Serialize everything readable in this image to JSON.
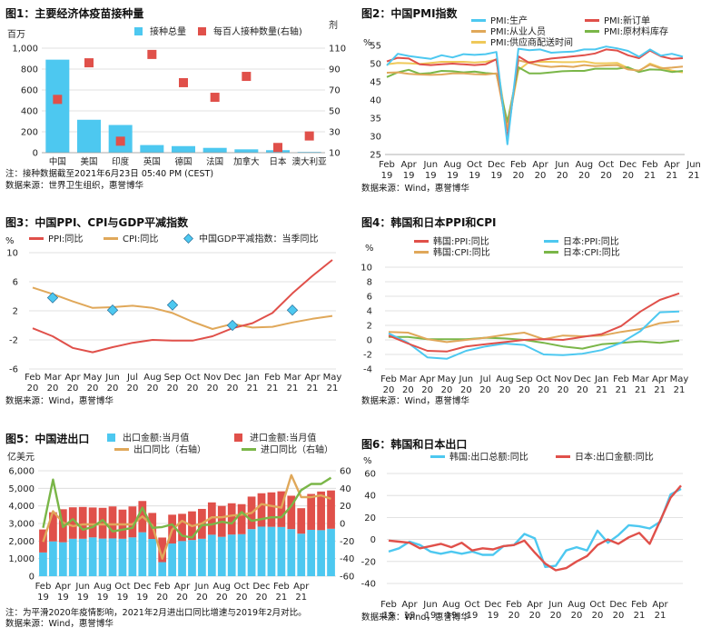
{
  "chart_data": [
    {
      "type": "bar",
      "title": "图1：主要经济体疫苗接种量",
      "yunit_left": "百万",
      "yunit_right": "剂",
      "categories": [
        "中国",
        "美国",
        "印度",
        "英国",
        "德国",
        "法国",
        "加拿大",
        "日本",
        "澳大利亚"
      ],
      "series": [
        {
          "name": "接种总量",
          "type": "bar",
          "axis": "left",
          "color": "#4dc8f0",
          "values": [
            890,
            315,
            265,
            73,
            63,
            46,
            32,
            24,
            7
          ]
        },
        {
          "name": "每百人接种数量(右轴)",
          "type": "scatter",
          "axis": "right",
          "color": "#e0504a",
          "values": [
            61,
            96,
            21,
            104,
            77,
            63,
            83,
            15,
            26
          ]
        }
      ],
      "yleft": {
        "min": 0,
        "max": 1000,
        "step": 200,
        "ticks": [
          "0",
          "200",
          "400",
          "600",
          "800",
          "1,000"
        ]
      },
      "yright": {
        "min": 10,
        "max": 110,
        "step": 20,
        "ticks": [
          "10",
          "30",
          "50",
          "70",
          "90",
          "110"
        ]
      },
      "notes": [
        "注：接种数据截至2021年6月23日 05:40 PM (CEST)",
        "数据来源：世界卫生组织，惠誉博华"
      ]
    },
    {
      "type": "line",
      "title": "图2：中国PMI指数",
      "yunit_left": "%",
      "xticks": [
        "Feb 19",
        "Apr 19",
        "Jun 19",
        "Aug 19",
        "Oct 19",
        "Dec 19",
        "Feb 20",
        "Apr 20",
        "Jun 20",
        "Aug 20",
        "Oct 20",
        "Dec 20",
        "Feb 21",
        "Apr 21",
        "Jun 21"
      ],
      "yleft": {
        "min": 25,
        "max": 55,
        "step": 5,
        "ticks": [
          "25",
          "30",
          "35",
          "40",
          "45",
          "50",
          "55"
        ]
      },
      "series": [
        {
          "name": "PMI:生产",
          "color": "#4dc8f0",
          "values": [
            49.5,
            52.7,
            52.1,
            51.7,
            51.3,
            52.3,
            51.7,
            52.6,
            52.4,
            52.6,
            53.2,
            27.8,
            54.1,
            53.7,
            53.9,
            53.0,
            53.2,
            53.3,
            53.9,
            53.9,
            54.7,
            54.2,
            53.5,
            51.9,
            53.9,
            52.2,
            52.7,
            51.9
          ]
        },
        {
          "name": "PMI:新订单",
          "color": "#e0504a",
          "values": [
            50.6,
            51.6,
            51.4,
            49.8,
            49.6,
            49.8,
            50.0,
            49.8,
            49.6,
            49.8,
            51.2,
            29.3,
            52.0,
            50.2,
            50.9,
            51.4,
            51.7,
            52.0,
            52.3,
            52.8,
            53.9,
            53.6,
            52.3,
            51.5,
            53.6,
            52.0,
            51.3,
            51.5
          ]
        },
        {
          "name": "PMI:从业人员",
          "color": "#e0a85a",
          "values": [
            47.5,
            47.6,
            47.2,
            47.0,
            46.9,
            47.0,
            47.3,
            47.3,
            47.1,
            47.0,
            47.3,
            31.8,
            50.9,
            50.2,
            49.4,
            49.1,
            49.3,
            49.1,
            49.6,
            49.3,
            49.5,
            49.6,
            48.4,
            48.1,
            49.7,
            48.7,
            48.9,
            49.2
          ]
        },
        {
          "name": "PMI:原材料库存",
          "color": "#7ab648",
          "values": [
            46.3,
            47.6,
            48.3,
            47.2,
            47.4,
            48.0,
            47.9,
            47.6,
            47.8,
            47.4,
            47.2,
            33.9,
            49.0,
            47.3,
            47.3,
            47.6,
            47.9,
            48.0,
            48.0,
            48.6,
            48.6,
            48.6,
            49.0,
            47.7,
            48.4,
            48.3,
            47.7,
            48.0
          ]
        },
        {
          "name": "PMI:供应商配送时间",
          "color": "#efc95a",
          "values": [
            49.8,
            50.2,
            50.1,
            49.9,
            50.2,
            50.5,
            50.5,
            50.5,
            50.3,
            50.5,
            51.1,
            32.1,
            48.2,
            50.5,
            50.5,
            50.5,
            50.4,
            50.4,
            50.6,
            50.1,
            50.1,
            50.2,
            48.8,
            47.9,
            50.0,
            48.9,
            48.1,
            47.6
          ]
        }
      ],
      "notes": [
        "数据来源：Wind，惠誉博华"
      ]
    },
    {
      "type": "line",
      "title": "图3：中国PPI、CPI与GDP平减指数",
      "yunit_left": "%",
      "xticks": [
        "Feb 20",
        "Mar 20",
        "Apr 20",
        "May 20",
        "Jun 20",
        "Jul 20",
        "Aug 20",
        "Sep 20",
        "Oct 20",
        "Nov 20",
        "Dec 20",
        "Jan 21",
        "Feb 21",
        "Mar 21",
        "Apr 21",
        "May 21"
      ],
      "yleft": {
        "min": -6,
        "max": 10,
        "step": 4,
        "ticks": [
          "-6",
          "-2",
          "2",
          "6",
          "10"
        ]
      },
      "series": [
        {
          "name": "PPI:同比",
          "color": "#e0504a",
          "values": [
            -0.4,
            -1.5,
            -3.1,
            -3.7,
            -3.0,
            -2.4,
            -2.0,
            -2.1,
            -2.1,
            -1.5,
            -0.4,
            0.3,
            1.7,
            4.4,
            6.8,
            9.0
          ]
        },
        {
          "name": "CPI:同比",
          "color": "#e0a85a",
          "values": [
            5.2,
            4.3,
            3.3,
            2.4,
            2.5,
            2.7,
            2.4,
            1.7,
            0.5,
            -0.5,
            0.2,
            -0.3,
            -0.2,
            0.4,
            0.9,
            1.3
          ]
        },
        {
          "name": "中国GDP平减指数：当季同比",
          "color": "#4dc8f0",
          "marker": "diamond",
          "points": [
            {
              "x": "Mar 20",
              "y": 3.8
            },
            {
              "x": "Jun 20",
              "y": 2.1
            },
            {
              "x": "Sep 20",
              "y": 2.8
            },
            {
              "x": "Dec 20",
              "y": 0.0
            },
            {
              "x": "Mar 21",
              "y": 2.1
            }
          ]
        }
      ],
      "notes": [
        "数据来源：Wind，惠誉博华"
      ]
    },
    {
      "type": "line",
      "title": "图4：韩国和日本PPI和CPI",
      "yunit_left": "%",
      "xticks": [
        "Feb 20",
        "Mar 20",
        "Apr 20",
        "May 20",
        "Jun 20",
        "Jul 20",
        "Aug 20",
        "Sep 20",
        "Oct 20",
        "Nov 20",
        "Dec 20",
        "Jan 21",
        "Feb 21",
        "Mar 21",
        "Apr 21",
        "May 21"
      ],
      "yleft": {
        "min": -4,
        "max": 10,
        "step": 2,
        "ticks": [
          "-4",
          "-2",
          "0",
          "2",
          "4",
          "6",
          "8",
          "10"
        ]
      },
      "series": [
        {
          "name": "韩国:PPI:同比",
          "color": "#e0504a",
          "values": [
            0.6,
            -0.5,
            -1.5,
            -1.6,
            -0.9,
            -0.6,
            -0.3,
            0.0,
            0.1,
            0.0,
            0.4,
            0.8,
            1.9,
            3.9,
            5.5,
            6.4
          ]
        },
        {
          "name": "日本:PPI:同比",
          "color": "#4dc8f0",
          "values": [
            0.9,
            -0.4,
            -2.4,
            -2.6,
            -1.5,
            -0.9,
            -0.5,
            -0.7,
            -2.0,
            -2.1,
            -1.9,
            -1.4,
            -0.4,
            1.2,
            3.8,
            3.9
          ]
        },
        {
          "name": "韩国:CPI:同比",
          "color": "#e0a85a",
          "values": [
            1.1,
            1.0,
            0.1,
            -0.3,
            0.0,
            0.3,
            0.7,
            1.0,
            0.1,
            0.6,
            0.5,
            0.6,
            1.1,
            1.5,
            2.3,
            2.6
          ]
        },
        {
          "name": "日本:CPI:同比",
          "color": "#7ab648",
          "values": [
            0.4,
            0.4,
            0.1,
            0.1,
            0.1,
            0.3,
            0.2,
            0.0,
            -0.4,
            -0.9,
            -1.2,
            -0.6,
            -0.4,
            -0.2,
            -0.4,
            -0.1
          ]
        }
      ],
      "notes": [
        "数据来源：Wind，惠誉博华"
      ]
    },
    {
      "type": "bar",
      "title": "图5：中国进出口",
      "yunit_left": "亿美元",
      "xticks": [
        "Feb 19",
        "Apr 19",
        "Jun 19",
        "Aug 19",
        "Oct 19",
        "Dec 19",
        "Feb 20",
        "Apr 20",
        "Jun 20",
        "Aug 20",
        "Oct 20",
        "Dec 20",
        "Feb 21",
        "Apr 21"
      ],
      "yleft": {
        "min": 0,
        "max": 6000,
        "step": 1000,
        "ticks": [
          "0",
          "1,000",
          "2,000",
          "3,000",
          "4,000",
          "5,000",
          "6,000"
        ]
      },
      "yright": {
        "min": -60,
        "max": 60,
        "step": 20,
        "ticks": [
          "-60",
          "-40",
          "-20",
          "0",
          "20",
          "40",
          "60"
        ]
      },
      "series": [
        {
          "name": "出口金额:当月值",
          "type": "bar",
          "axis": "left",
          "stack": "trade",
          "color": "#4dc8f0",
          "values": [
            1350,
            1980,
            1930,
            2130,
            2130,
            2210,
            2140,
            2150,
            2130,
            2210,
            2500,
            2120,
            800,
            1860,
            2000,
            2060,
            2130,
            2360,
            2240,
            2370,
            2390,
            2680,
            2820,
            2810,
            2800,
            2680,
            2420,
            2640,
            2620,
            2700
          ]
        },
        {
          "name": "进口金额:当月值",
          "type": "bar",
          "axis": "left",
          "stack": "trade",
          "color": "#e0504a",
          "values": [
            1310,
            1660,
            1880,
            1790,
            1810,
            1700,
            1750,
            1820,
            1660,
            1760,
            1780,
            1480,
            1400,
            1640,
            1550,
            1630,
            1700,
            1840,
            1760,
            1780,
            1710,
            1850,
            1900,
            1960,
            2030,
            1900,
            1450,
            2040,
            2200,
            2180
          ]
        },
        {
          "name": "出口同比（右轴）",
          "type": "line",
          "axis": "right",
          "color": "#e0a85a",
          "values": [
            -21,
            14,
            1,
            -3,
            -1,
            -1,
            -1,
            -1,
            -1,
            -1,
            8,
            -2,
            -40,
            -7,
            3,
            -3,
            0,
            7,
            7,
            9,
            10,
            12,
            22,
            20,
            18,
            55,
            30,
            30,
            32,
            28
          ]
        },
        {
          "name": "进口同比（右轴）",
          "type": "line",
          "axis": "right",
          "color": "#7ab648",
          "values": [
            -5,
            50,
            -4,
            5,
            -7,
            -4,
            4,
            -9,
            -7,
            -5,
            18,
            -5,
            -4,
            -1,
            -14,
            -16,
            -2,
            -1,
            2,
            0,
            13,
            3,
            5,
            7,
            7,
            20,
            38,
            45,
            45,
            52
          ]
        }
      ],
      "notes": [
        "注：为平滑2020年疫情影响，2021年2月进出口同比增速与2019年2月对比。",
        "数据来源：Wind，惠誉博华"
      ]
    },
    {
      "type": "line",
      "title": "图6：韩国和日本出口",
      "yunit_left": "%",
      "xticks": [
        "Feb 19",
        "Apr 19",
        "Jun 19",
        "Aug 19",
        "Oct 19",
        "Dec 19",
        "Feb 20",
        "Apr 20",
        "Jun 20",
        "Aug 20",
        "Oct 20",
        "Dec 20",
        "Feb 21",
        "Apr 21"
      ],
      "yleft": {
        "min": -40,
        "max": 60,
        "step": 20,
        "ticks": [
          "-40",
          "-20",
          "0",
          "20",
          "40",
          "60"
        ]
      },
      "series": [
        {
          "name": "韩国:出口总额:同比",
          "color": "#4dc8f0",
          "values": [
            -11,
            -8,
            -2,
            -5,
            -11,
            -13,
            -11,
            -13,
            -11,
            -14,
            -14,
            -6,
            -5,
            5,
            1,
            -25,
            -24,
            -10,
            -7,
            -10,
            8,
            -3,
            4,
            13,
            12,
            10,
            16,
            41,
            46
          ]
        },
        {
          "name": "日本:出口金额:同比",
          "color": "#e0504a",
          "values": [
            -1,
            -2,
            -3,
            -8,
            -6,
            -4,
            -7,
            -3,
            -10,
            -8,
            -9,
            -6,
            -5,
            -1,
            -12,
            -22,
            -28,
            -26,
            -20,
            -15,
            -5,
            0,
            -4,
            2,
            6,
            -4,
            17,
            38,
            49
          ]
        }
      ],
      "notes": [
        "数据来源：Wind，惠誉博华"
      ]
    }
  ]
}
